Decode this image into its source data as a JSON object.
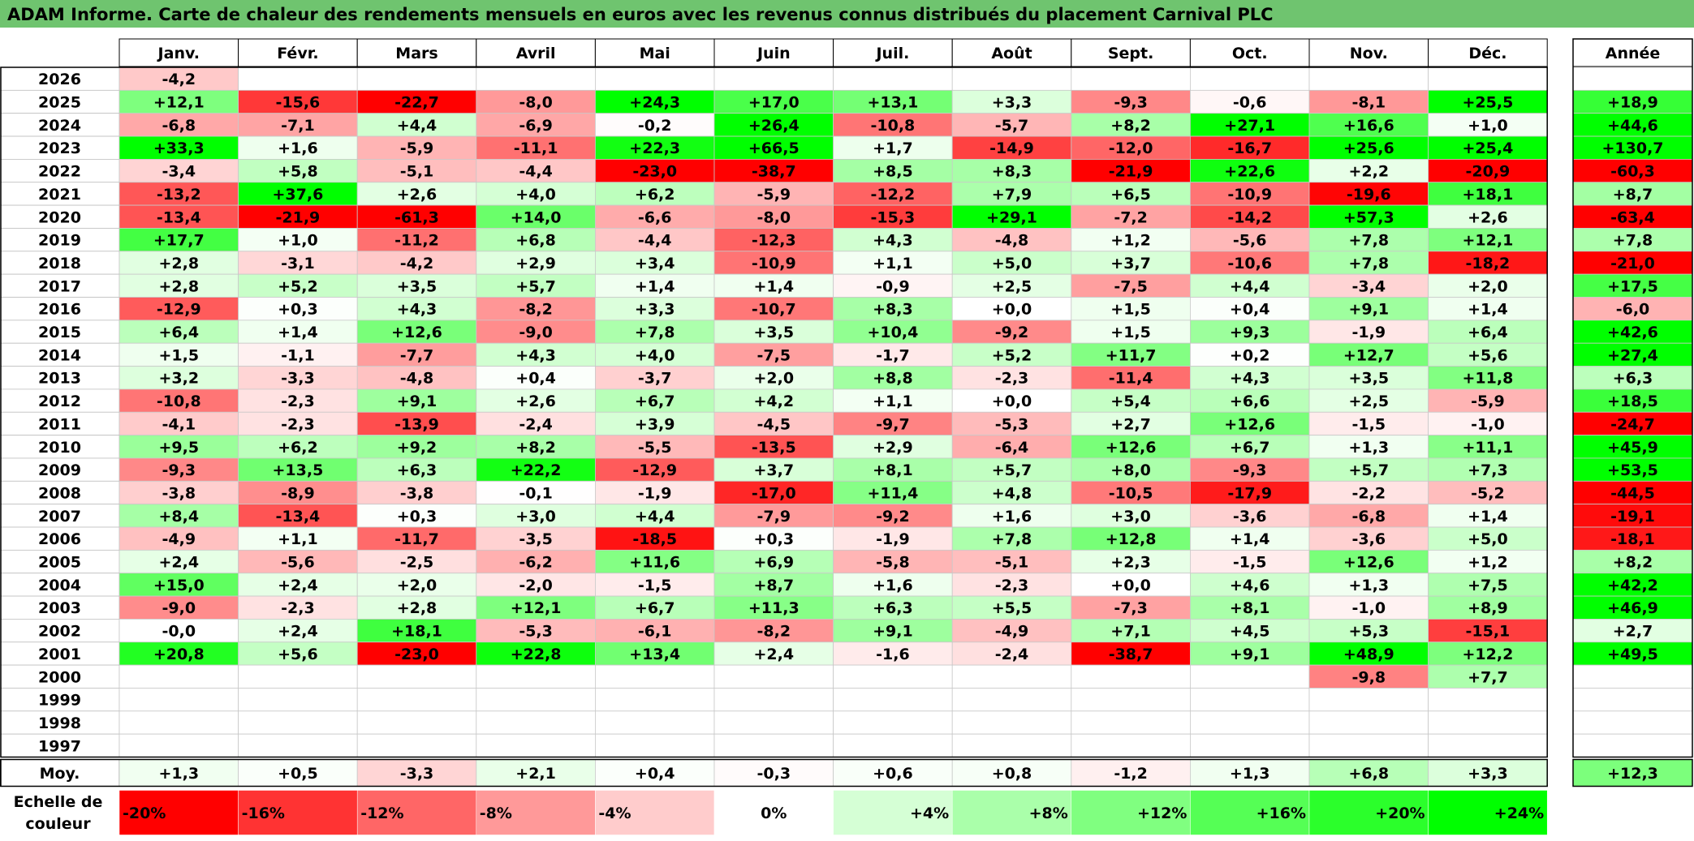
{
  "title": "ADAM Informe. Carte de chaleur des rendements mensuels en euros avec les revenus connus distribués du placement Carnival PLC",
  "chart_data": {
    "type": "heatmap",
    "title": "ADAM Informe. Carte de chaleur des rendements mensuels en euros avec les revenus connus distribués du placement Carnival PLC",
    "months": [
      "Janv.",
      "Févr.",
      "Mars",
      "Avril",
      "Mai",
      "Juin",
      "Juil.",
      "Août",
      "Sept.",
      "Oct.",
      "Nov.",
      "Déc."
    ],
    "year_header": "Année",
    "rows": [
      {
        "year": "2026",
        "months": [
          "-4,2",
          "",
          "",
          "",
          "",
          "",
          "",
          "",
          "",
          "",
          "",
          ""
        ],
        "annual": ""
      },
      {
        "year": "2025",
        "months": [
          "+12,1",
          "-15,6",
          "-22,7",
          "-8,0",
          "+24,3",
          "+17,0",
          "+13,1",
          "+3,3",
          "-9,3",
          "-0,6",
          "-8,1",
          "+25,5"
        ],
        "annual": "+18,9"
      },
      {
        "year": "2024",
        "months": [
          "-6,8",
          "-7,1",
          "+4,4",
          "-6,9",
          "-0,2",
          "+26,4",
          "-10,8",
          "-5,7",
          "+8,2",
          "+27,1",
          "+16,6",
          "+1,0"
        ],
        "annual": "+44,6"
      },
      {
        "year": "2023",
        "months": [
          "+33,3",
          "+1,6",
          "-5,9",
          "-11,1",
          "+22,3",
          "+66,5",
          "+1,7",
          "-14,9",
          "-12,0",
          "-16,7",
          "+25,6",
          "+25,4"
        ],
        "annual": "+130,7"
      },
      {
        "year": "2022",
        "months": [
          "-3,4",
          "+5,8",
          "-5,1",
          "-4,4",
          "-23,0",
          "-38,7",
          "+8,5",
          "+8,3",
          "-21,9",
          "+22,6",
          "+2,2",
          "-20,9"
        ],
        "annual": "-60,3"
      },
      {
        "year": "2021",
        "months": [
          "-13,2",
          "+37,6",
          "+2,6",
          "+4,0",
          "+6,2",
          "-5,9",
          "-12,2",
          "+7,9",
          "+6,5",
          "-10,9",
          "-19,6",
          "+18,1"
        ],
        "annual": "+8,7"
      },
      {
        "year": "2020",
        "months": [
          "-13,4",
          "-21,9",
          "-61,3",
          "+14,0",
          "-6,6",
          "-8,0",
          "-15,3",
          "+29,1",
          "-7,2",
          "-14,2",
          "+57,3",
          "+2,6"
        ],
        "annual": "-63,4"
      },
      {
        "year": "2019",
        "months": [
          "+17,7",
          "+1,0",
          "-11,2",
          "+6,8",
          "-4,4",
          "-12,3",
          "+4,3",
          "-4,8",
          "+1,2",
          "-5,6",
          "+7,8",
          "+12,1"
        ],
        "annual": "+7,8"
      },
      {
        "year": "2018",
        "months": [
          "+2,8",
          "-3,1",
          "-4,2",
          "+2,9",
          "+3,4",
          "-10,9",
          "+1,1",
          "+5,0",
          "+3,7",
          "-10,6",
          "+7,8",
          "-18,2"
        ],
        "annual": "-21,0"
      },
      {
        "year": "2017",
        "months": [
          "+2,8",
          "+5,2",
          "+3,5",
          "+5,7",
          "+1,4",
          "+1,4",
          "-0,9",
          "+2,5",
          "-7,5",
          "+4,4",
          "-3,4",
          "+2,0"
        ],
        "annual": "+17,5"
      },
      {
        "year": "2016",
        "months": [
          "-12,9",
          "+0,3",
          "+4,3",
          "-8,2",
          "+3,3",
          "-10,7",
          "+8,3",
          "+0,0",
          "+1,5",
          "+0,4",
          "+9,1",
          "+1,4"
        ],
        "annual": "-6,0"
      },
      {
        "year": "2015",
        "months": [
          "+6,4",
          "+1,4",
          "+12,6",
          "-9,0",
          "+7,8",
          "+3,5",
          "+10,4",
          "-9,2",
          "+1,5",
          "+9,3",
          "-1,9",
          "+6,4"
        ],
        "annual": "+42,6"
      },
      {
        "year": "2014",
        "months": [
          "+1,5",
          "-1,1",
          "-7,7",
          "+4,3",
          "+4,0",
          "-7,5",
          "-1,7",
          "+5,2",
          "+11,7",
          "+0,2",
          "+12,7",
          "+5,6"
        ],
        "annual": "+27,4"
      },
      {
        "year": "2013",
        "months": [
          "+3,2",
          "-3,3",
          "-4,8",
          "+0,4",
          "-3,7",
          "+2,0",
          "+8,8",
          "-2,3",
          "-11,4",
          "+4,3",
          "+3,5",
          "+11,8"
        ],
        "annual": "+6,3"
      },
      {
        "year": "2012",
        "months": [
          "-10,8",
          "-2,3",
          "+9,1",
          "+2,6",
          "+6,7",
          "+4,2",
          "+1,1",
          "+0,0",
          "+5,4",
          "+6,6",
          "+2,5",
          "-5,9"
        ],
        "annual": "+18,5"
      },
      {
        "year": "2011",
        "months": [
          "-4,1",
          "-2,3",
          "-13,9",
          "-2,4",
          "+3,9",
          "-4,5",
          "-9,7",
          "-5,3",
          "+2,7",
          "+12,6",
          "-1,5",
          "-1,0"
        ],
        "annual": "-24,7"
      },
      {
        "year": "2010",
        "months": [
          "+9,5",
          "+6,2",
          "+9,2",
          "+8,2",
          "-5,5",
          "-13,5",
          "+2,9",
          "-6,4",
          "+12,6",
          "+6,7",
          "+1,3",
          "+11,1"
        ],
        "annual": "+45,9"
      },
      {
        "year": "2009",
        "months": [
          "-9,3",
          "+13,5",
          "+6,3",
          "+22,2",
          "-12,9",
          "+3,7",
          "+8,1",
          "+5,7",
          "+8,0",
          "-9,3",
          "+5,7",
          "+7,3"
        ],
        "annual": "+53,5"
      },
      {
        "year": "2008",
        "months": [
          "-3,8",
          "-8,9",
          "-3,8",
          "-0,1",
          "-1,9",
          "-17,0",
          "+11,4",
          "+4,8",
          "-10,5",
          "-17,9",
          "-2,2",
          "-5,2"
        ],
        "annual": "-44,5"
      },
      {
        "year": "2007",
        "months": [
          "+8,4",
          "-13,4",
          "+0,3",
          "+3,0",
          "+4,4",
          "-7,9",
          "-9,2",
          "+1,6",
          "+3,0",
          "-3,6",
          "-6,8",
          "+1,4"
        ],
        "annual": "-19,1"
      },
      {
        "year": "2006",
        "months": [
          "-4,9",
          "+1,1",
          "-11,7",
          "-3,5",
          "-18,5",
          "+0,3",
          "-1,9",
          "+7,8",
          "+12,8",
          "+1,4",
          "-3,6",
          "+5,0"
        ],
        "annual": "-18,1"
      },
      {
        "year": "2005",
        "months": [
          "+2,4",
          "-5,6",
          "-2,5",
          "-6,2",
          "+11,6",
          "+6,9",
          "-5,8",
          "-5,1",
          "+2,3",
          "-1,5",
          "+12,6",
          "+1,2"
        ],
        "annual": "+8,2"
      },
      {
        "year": "2004",
        "months": [
          "+15,0",
          "+2,4",
          "+2,0",
          "-2,0",
          "-1,5",
          "+8,7",
          "+1,6",
          "-2,3",
          "+0,0",
          "+4,6",
          "+1,3",
          "+7,5"
        ],
        "annual": "+42,2"
      },
      {
        "year": "2003",
        "months": [
          "-9,0",
          "-2,3",
          "+2,8",
          "+12,1",
          "+6,7",
          "+11,3",
          "+6,3",
          "+5,5",
          "-7,3",
          "+8,1",
          "-1,0",
          "+8,9"
        ],
        "annual": "+46,9"
      },
      {
        "year": "2002",
        "months": [
          "-0,0",
          "+2,4",
          "+18,1",
          "-5,3",
          "-6,1",
          "-8,2",
          "+9,1",
          "-4,9",
          "+7,1",
          "+4,5",
          "+5,3",
          "-15,1"
        ],
        "annual": "+2,7"
      },
      {
        "year": "2001",
        "months": [
          "+20,8",
          "+5,6",
          "-23,0",
          "+22,8",
          "+13,4",
          "+2,4",
          "-1,6",
          "-2,4",
          "-38,7",
          "+9,1",
          "+48,9",
          "+12,2"
        ],
        "annual": "+49,5"
      },
      {
        "year": "2000",
        "months": [
          "",
          "",
          "",
          "",
          "",
          "",
          "",
          "",
          "",
          "",
          "-9,8",
          "+7,7"
        ],
        "annual": ""
      },
      {
        "year": "1999",
        "months": [
          "",
          "",
          "",
          "",
          "",
          "",
          "",
          "",
          "",
          "",
          "",
          ""
        ],
        "annual": ""
      },
      {
        "year": "1998",
        "months": [
          "",
          "",
          "",
          "",
          "",
          "",
          "",
          "",
          "",
          "",
          "",
          ""
        ],
        "annual": ""
      },
      {
        "year": "1997",
        "months": [
          "",
          "",
          "",
          "",
          "",
          "",
          "",
          "",
          "",
          "",
          "",
          ""
        ],
        "annual": ""
      }
    ],
    "average": {
      "label": "Moy.",
      "months": [
        "+1,3",
        "+0,5",
        "-3,3",
        "+2,1",
        "+0,4",
        "-0,3",
        "+0,6",
        "+0,8",
        "-1,2",
        "+1,3",
        "+6,8",
        "+3,3"
      ],
      "annual": "+12,3"
    },
    "scale": {
      "label_lines": [
        "Echelle de",
        "couleur"
      ],
      "steps": [
        "-20%",
        "-16%",
        "-12%",
        "-8%",
        "-4%",
        "0%",
        "+4%",
        "+8%",
        "+12%",
        "+16%",
        "+20%",
        "+24%"
      ]
    }
  }
}
